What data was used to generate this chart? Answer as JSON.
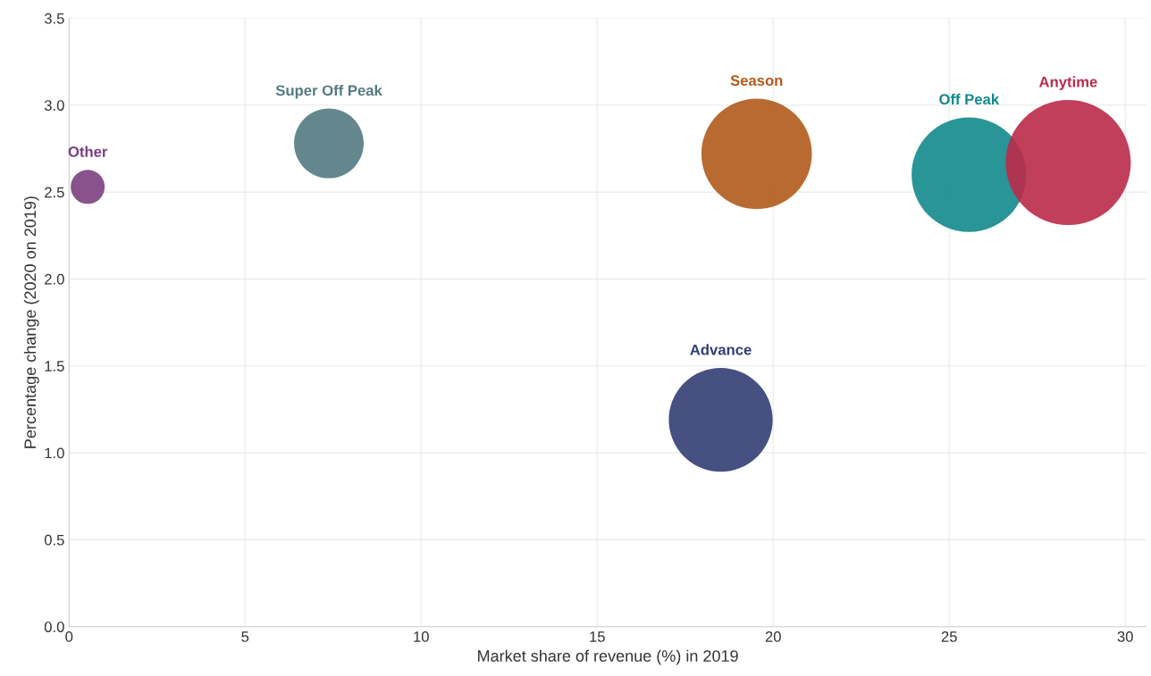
{
  "chart_data": {
    "type": "bubble",
    "xlabel": "Market share of revenue (%) in 2019",
    "ylabel": "Percentage change (2020 on 2019)",
    "xlim": [
      0,
      30.6
    ],
    "xticks": [
      0,
      5,
      10,
      15,
      20,
      25,
      30
    ],
    "ylim": [
      0,
      3.5
    ],
    "yticks": [
      {
        "value": 0,
        "label": "0.0"
      },
      {
        "value": 0.5,
        "label": "0.5"
      },
      {
        "value": 1,
        "label": "1.0"
      },
      {
        "value": 1.5,
        "label": "1.5"
      },
      {
        "value": 2,
        "label": "2.0"
      },
      {
        "value": 2.5,
        "label": "2.5"
      },
      {
        "value": 3,
        "label": "3.0"
      },
      {
        "value": 3.5,
        "label": "3.5"
      }
    ],
    "grid": true,
    "legend": false,
    "series": [
      {
        "name": "Other",
        "color": "#7b3f7f",
        "x": [
          0.53
        ],
        "values": [
          2.53
        ],
        "sizes": [
          0.074
        ]
      },
      {
        "name": "Super Off Peak",
        "color": "#537a82",
        "x": [
          7.38
        ],
        "values": [
          2.78
        ],
        "sizes": [
          0.31
        ]
      },
      {
        "name": "Season",
        "color": "#b05a1a",
        "x": [
          19.53
        ],
        "values": [
          2.72
        ],
        "sizes": [
          0.78
        ]
      },
      {
        "name": "Advance",
        "color": "#323d73",
        "x": [
          18.51
        ],
        "values": [
          1.19
        ],
        "sizes": [
          0.69
        ]
      },
      {
        "name": "Off Peak",
        "color": "#12898c",
        "x": [
          25.56
        ],
        "values": [
          2.6
        ],
        "sizes": [
          0.84
        ]
      },
      {
        "name": "Anytime",
        "color": "#bb2a4a",
        "x": [
          28.38
        ],
        "values": [
          2.67
        ],
        "sizes": [
          1.0
        ]
      }
    ]
  }
}
